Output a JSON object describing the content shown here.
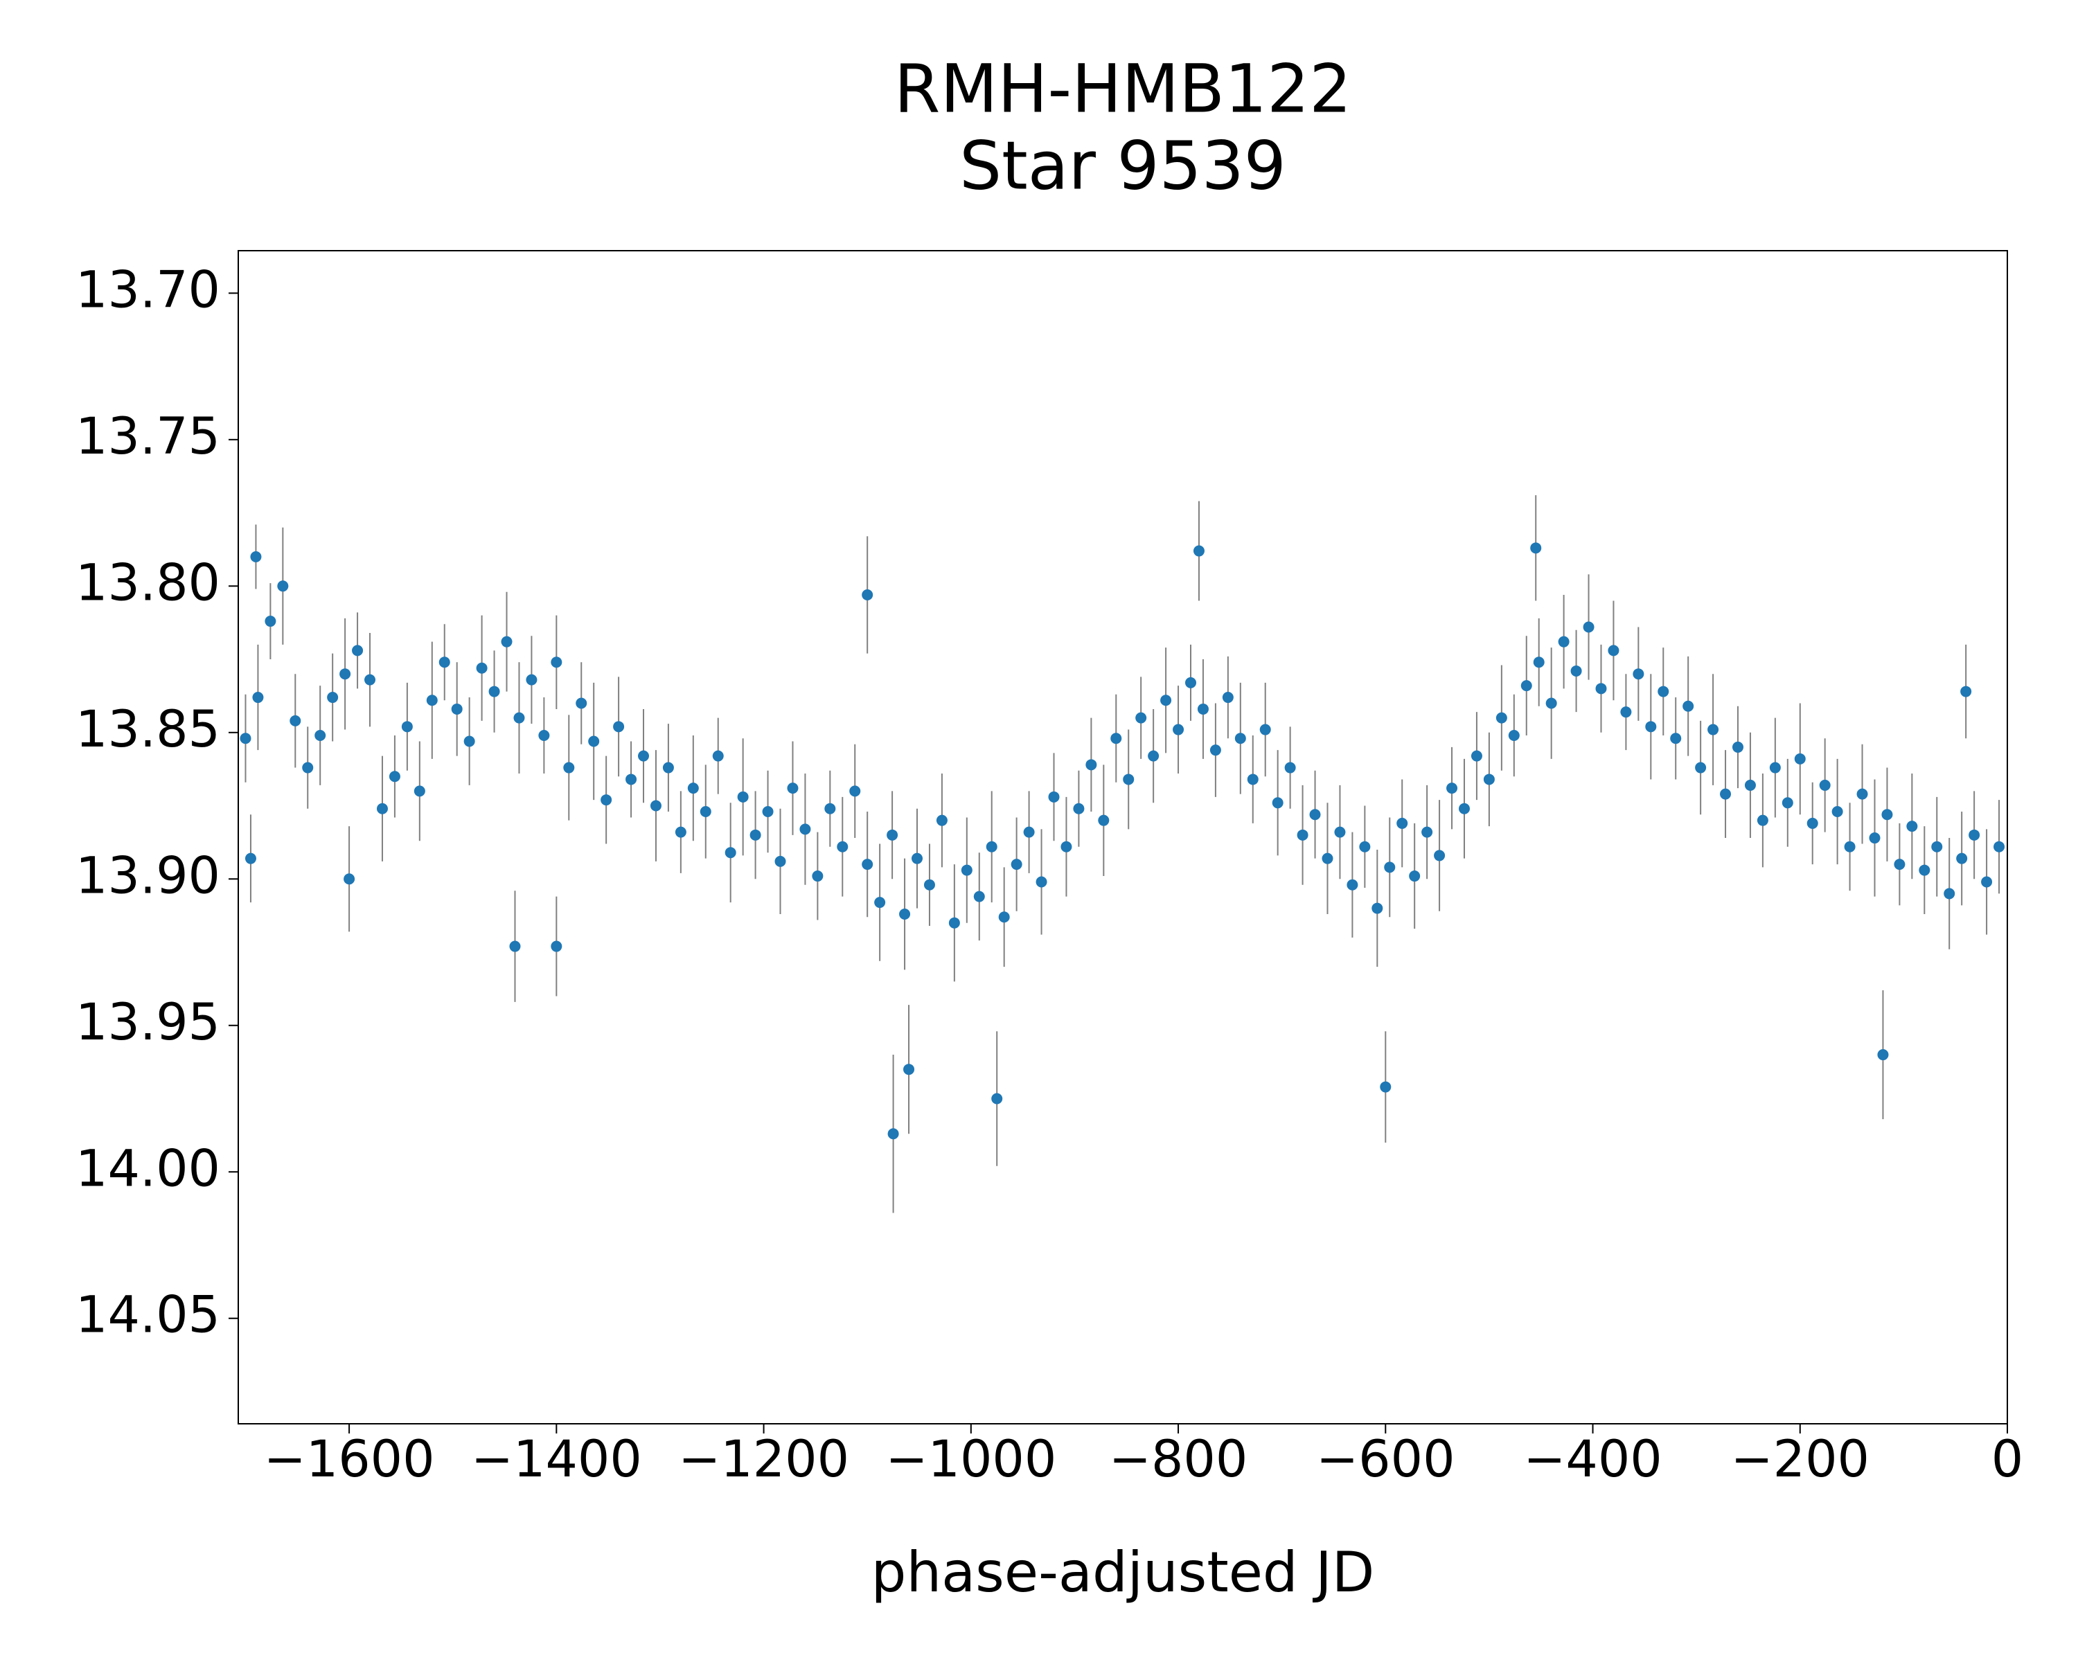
{
  "chart_data": {
    "type": "scatter",
    "title": "RMH-HMB122",
    "subtitle": "Star 9539",
    "xlabel": "phase-adjusted JD",
    "xlim": [
      -1707,
      0
    ],
    "ylim": [
      14.086,
      13.6855
    ],
    "xticks": [
      {
        "value": -1600,
        "label": "−1600"
      },
      {
        "value": -1400,
        "label": "−1400"
      },
      {
        "value": -1200,
        "label": "−1200"
      },
      {
        "value": -1000,
        "label": "−1000"
      },
      {
        "value": -800,
        "label": "−800"
      },
      {
        "value": -600,
        "label": "−600"
      },
      {
        "value": -400,
        "label": "−400"
      },
      {
        "value": -200,
        "label": "−200"
      },
      0
    ],
    "yticks": [
      {
        "value": 13.7,
        "label": "13.70"
      },
      {
        "value": 13.75,
        "label": "13.75"
      },
      {
        "value": 13.8,
        "label": "13.80"
      },
      {
        "value": 13.85,
        "label": "13.85"
      },
      {
        "value": 13.9,
        "label": "13.90"
      },
      {
        "value": 13.95,
        "label": "13.95"
      },
      {
        "value": 14.0,
        "label": "14.00"
      },
      {
        "value": 14.05,
        "label": "14.05"
      }
    ],
    "series": [
      {
        "color": "#1f77b4",
        "error_color": "#808080",
        "x": [
          -1700,
          -1688,
          -1676,
          -1664,
          -1652,
          -1640,
          -1628,
          -1616,
          -1604,
          -1592,
          -1580,
          -1568,
          -1556,
          -1544,
          -1532,
          -1520,
          -1508,
          -1496,
          -1484,
          -1472,
          -1460,
          -1448,
          -1436,
          -1424,
          -1412,
          -1400,
          -1388,
          -1376,
          -1364,
          -1352,
          -1340,
          -1328,
          -1316,
          -1304,
          -1292,
          -1280,
          -1268,
          -1256,
          -1244,
          -1232,
          -1220,
          -1208,
          -1196,
          -1184,
          -1172,
          -1160,
          -1148,
          -1136,
          -1124,
          -1112,
          -1100,
          -1088,
          -1076,
          -1064,
          -1052,
          -1040,
          -1028,
          -1016,
          -1004,
          -992,
          -980,
          -968,
          -956,
          -944,
          -932,
          -920,
          -908,
          -896,
          -884,
          -872,
          -860,
          -848,
          -836,
          -824,
          -812,
          -800,
          -788,
          -776,
          -764,
          -752,
          -740,
          -728,
          -716,
          -704,
          -692,
          -680,
          -668,
          -656,
          -644,
          -632,
          -620,
          -608,
          -596,
          -584,
          -572,
          -560,
          -548,
          -536,
          -524,
          -512,
          -500,
          -488,
          -476,
          -464,
          -452,
          -440,
          -428,
          -416,
          -404,
          -392,
          -380,
          -368,
          -356,
          -344,
          -332,
          -320,
          -308,
          -296,
          -284,
          -272,
          -260,
          -248,
          -236,
          -224,
          -212,
          -200,
          -188,
          -176,
          -164,
          -152,
          -140,
          -128,
          -116,
          -104,
          -92,
          -80,
          -68,
          -56,
          -44,
          -32,
          -20,
          -8,
          -1695,
          -1600,
          -1440,
          -1400,
          -1075,
          -1060,
          -975,
          -600,
          -780,
          -455,
          -120,
          -1100,
          -1690,
          -40
        ],
        "values": [
          13.852,
          13.838,
          13.812,
          13.8,
          13.846,
          13.862,
          13.851,
          13.838,
          13.83,
          13.822,
          13.832,
          13.876,
          13.865,
          13.848,
          13.87,
          13.839,
          13.826,
          13.842,
          13.853,
          13.828,
          13.836,
          13.819,
          13.845,
          13.832,
          13.851,
          13.826,
          13.862,
          13.84,
          13.853,
          13.873,
          13.848,
          13.866,
          13.858,
          13.875,
          13.862,
          13.884,
          13.869,
          13.877,
          13.858,
          13.891,
          13.872,
          13.885,
          13.877,
          13.894,
          13.869,
          13.883,
          13.899,
          13.876,
          13.889,
          13.87,
          13.895,
          13.908,
          13.885,
          13.912,
          13.893,
          13.902,
          13.88,
          13.915,
          13.897,
          13.906,
          13.889,
          13.913,
          13.895,
          13.884,
          13.901,
          13.872,
          13.889,
          13.876,
          13.861,
          13.88,
          13.852,
          13.866,
          13.845,
          13.858,
          13.839,
          13.849,
          13.833,
          13.842,
          13.856,
          13.838,
          13.852,
          13.866,
          13.849,
          13.874,
          13.862,
          13.885,
          13.878,
          13.893,
          13.884,
          13.902,
          13.889,
          13.91,
          13.896,
          13.881,
          13.899,
          13.884,
          13.892,
          13.869,
          13.876,
          13.858,
          13.866,
          13.845,
          13.851,
          13.834,
          13.826,
          13.84,
          13.819,
          13.829,
          13.814,
          13.835,
          13.822,
          13.843,
          13.83,
          13.848,
          13.836,
          13.852,
          13.841,
          13.862,
          13.849,
          13.871,
          13.855,
          13.868,
          13.88,
          13.862,
          13.874,
          13.859,
          13.881,
          13.868,
          13.877,
          13.889,
          13.871,
          13.886,
          13.878,
          13.895,
          13.882,
          13.897,
          13.889,
          13.905,
          13.893,
          13.885,
          13.901,
          13.889,
          13.893,
          13.9,
          13.923,
          13.923,
          13.987,
          13.965,
          13.975,
          13.971,
          13.788,
          13.787,
          13.96,
          13.803,
          13.79,
          13.836
        ],
        "errors": [
          0.015,
          0.018,
          0.013,
          0.02,
          0.016,
          0.014,
          0.017,
          0.015,
          0.019,
          0.013,
          0.016,
          0.018,
          0.014,
          0.015,
          0.017,
          0.02,
          0.013,
          0.016,
          0.015,
          0.018,
          0.014,
          0.017,
          0.019,
          0.015,
          0.013,
          0.016,
          0.018,
          0.014,
          0.02,
          0.015,
          0.017,
          0.013,
          0.016,
          0.019,
          0.015,
          0.014,
          0.018,
          0.016,
          0.013,
          0.017,
          0.02,
          0.015,
          0.014,
          0.018,
          0.016,
          0.019,
          0.015,
          0.013,
          0.017,
          0.016,
          0.018,
          0.02,
          0.015,
          0.019,
          0.017,
          0.014,
          0.016,
          0.02,
          0.018,
          0.015,
          0.019,
          0.017,
          0.016,
          0.014,
          0.018,
          0.015,
          0.017,
          0.013,
          0.016,
          0.019,
          0.015,
          0.017,
          0.014,
          0.016,
          0.018,
          0.015,
          0.013,
          0.017,
          0.016,
          0.014,
          0.019,
          0.015,
          0.016,
          0.018,
          0.014,
          0.017,
          0.015,
          0.019,
          0.016,
          0.018,
          0.014,
          0.02,
          0.017,
          0.015,
          0.018,
          0.016,
          0.019,
          0.014,
          0.017,
          0.015,
          0.016,
          0.018,
          0.014,
          0.017,
          0.015,
          0.019,
          0.016,
          0.014,
          0.018,
          0.015,
          0.017,
          0.013,
          0.016,
          0.018,
          0.015,
          0.014,
          0.017,
          0.016,
          0.019,
          0.015,
          0.014,
          0.018,
          0.016,
          0.017,
          0.015,
          0.019,
          0.014,
          0.016,
          0.018,
          0.015,
          0.017,
          0.02,
          0.016,
          0.014,
          0.018,
          0.015,
          0.017,
          0.019,
          0.016,
          0.015,
          0.018,
          0.016,
          0.015,
          0.018,
          0.019,
          0.017,
          0.027,
          0.022,
          0.023,
          0.019,
          0.017,
          0.018,
          0.022,
          0.02,
          0.011,
          0.016
        ]
      }
    ]
  }
}
